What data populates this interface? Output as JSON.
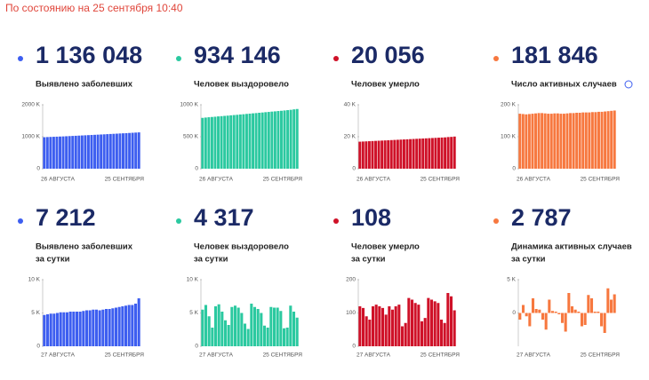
{
  "header": "По состоянию на 25 сентября 10:40",
  "chart_data": [
    {
      "type": "bar",
      "title": "1 136 048",
      "subtitle": [
        "Выявлено заболевших"
      ],
      "color": "#3d5ef0",
      "categories": [
        "26 АВГУСТА",
        null,
        null,
        null,
        null,
        null,
        null,
        null,
        null,
        null,
        null,
        null,
        null,
        null,
        null,
        null,
        null,
        null,
        null,
        null,
        null,
        null,
        null,
        null,
        null,
        null,
        null,
        null,
        null,
        null,
        "25 СЕНТЯБРЯ"
      ],
      "values": [
        985,
        990,
        994,
        998,
        1002,
        1006,
        1010,
        1015,
        1020,
        1025,
        1030,
        1035,
        1040,
        1045,
        1050,
        1055,
        1060,
        1065,
        1070,
        1075,
        1081,
        1086,
        1091,
        1096,
        1102,
        1107,
        1112,
        1118,
        1124,
        1130,
        1136
      ],
      "ylim": [
        0,
        2000
      ],
      "yticks": [
        0,
        {
          "value": 1000,
          "label": "1000 K"
        },
        {
          "value": 2000,
          "label": "2000 K"
        }
      ]
    },
    {
      "type": "bar",
      "title": "934 146",
      "subtitle": [
        "Человек выздоровело"
      ],
      "color": "#2bc9a0",
      "categories": [
        "26 АВГУСТА",
        null,
        null,
        null,
        null,
        null,
        null,
        null,
        null,
        null,
        null,
        null,
        null,
        null,
        null,
        null,
        null,
        null,
        null,
        null,
        null,
        null,
        null,
        null,
        null,
        null,
        null,
        null,
        null,
        null,
        "25 СЕНТЯБРЯ"
      ],
      "values": [
        795,
        800,
        805,
        809,
        813,
        818,
        822,
        826,
        830,
        835,
        839,
        843,
        848,
        852,
        857,
        861,
        866,
        870,
        875,
        879,
        884,
        888,
        893,
        897,
        902,
        906,
        911,
        916,
        921,
        928,
        934
      ],
      "ylim": [
        0,
        1000
      ],
      "yticks": [
        0,
        {
          "value": 500,
          "label": "500 K"
        },
        {
          "value": 1000,
          "label": "1000 K"
        }
      ]
    },
    {
      "type": "bar",
      "title": "20 056",
      "subtitle": [
        "Человек умерло"
      ],
      "color": "#cf1128",
      "categories": [
        "26 АВГУСТА",
        null,
        null,
        null,
        null,
        null,
        null,
        null,
        null,
        null,
        null,
        null,
        null,
        null,
        null,
        null,
        null,
        null,
        null,
        null,
        null,
        null,
        null,
        null,
        null,
        null,
        null,
        null,
        null,
        null,
        "25 СЕНТЯБРЯ"
      ],
      "values": [
        16.9,
        17.0,
        17.1,
        17.2,
        17.3,
        17.4,
        17.5,
        17.6,
        17.7,
        17.8,
        17.9,
        18.0,
        18.1,
        18.2,
        18.3,
        18.4,
        18.5,
        18.6,
        18.7,
        18.8,
        18.9,
        19.0,
        19.1,
        19.2,
        19.3,
        19.4,
        19.5,
        19.6,
        19.8,
        19.9,
        20.1
      ],
      "ylim": [
        0,
        40
      ],
      "yticks": [
        0,
        {
          "value": 20,
          "label": "20 K"
        },
        {
          "value": 40,
          "label": "40 K"
        }
      ]
    },
    {
      "type": "bar",
      "title": "181 846",
      "subtitle": [
        "Число активных случаев"
      ],
      "color": "#f7783f",
      "categories": [
        "26 АВГУСТА",
        null,
        null,
        null,
        null,
        null,
        null,
        null,
        null,
        null,
        null,
        null,
        null,
        null,
        null,
        null,
        null,
        null,
        null,
        null,
        null,
        null,
        null,
        null,
        null,
        null,
        null,
        null,
        null,
        null,
        "25 СЕНТЯБРЯ"
      ],
      "values": [
        172,
        171,
        170,
        171,
        172,
        173,
        174,
        174,
        173,
        172,
        172,
        173,
        173,
        172,
        172,
        173,
        174,
        174,
        175,
        175,
        176,
        176,
        176,
        177,
        177,
        178,
        178,
        179,
        180,
        181,
        182
      ],
      "ylim": [
        0,
        200
      ],
      "yticks": [
        0,
        {
          "value": 100,
          "label": "100 K"
        },
        {
          "value": 200,
          "label": "200 K"
        }
      ]
    },
    {
      "type": "bar",
      "title": "7 212",
      "subtitle": [
        "Выявлено заболевших",
        "за сутки"
      ],
      "color": "#3d5ef0",
      "categories": [
        "27 АВГУСТА",
        null,
        null,
        null,
        null,
        null,
        null,
        null,
        null,
        null,
        null,
        null,
        null,
        null,
        null,
        null,
        null,
        null,
        null,
        null,
        null,
        null,
        null,
        null,
        null,
        null,
        null,
        null,
        null,
        "25 СЕНТЯБРЯ"
      ],
      "values": [
        4.7,
        4.8,
        4.9,
        4.9,
        5.0,
        5.1,
        5.1,
        5.1,
        5.2,
        5.2,
        5.2,
        5.2,
        5.3,
        5.4,
        5.4,
        5.5,
        5.5,
        5.4,
        5.5,
        5.6,
        5.6,
        5.7,
        5.8,
        5.9,
        6.0,
        6.1,
        6.2,
        6.2,
        6.4,
        7.2
      ],
      "ylim": [
        0,
        10
      ],
      "yticks": [
        0,
        {
          "value": 5,
          "label": "5 K"
        },
        {
          "value": 10,
          "label": "10 K"
        }
      ]
    },
    {
      "type": "bar",
      "title": "4 317",
      "subtitle": [
        "Человек выздоровело",
        "за сутки"
      ],
      "color": "#2bc9a0",
      "categories": [
        "27 АВГУСТА",
        null,
        null,
        null,
        null,
        null,
        null,
        null,
        null,
        null,
        null,
        null,
        null,
        null,
        null,
        null,
        null,
        null,
        null,
        null,
        null,
        null,
        null,
        null,
        null,
        null,
        null,
        null,
        null,
        "25 СЕНТЯБРЯ"
      ],
      "values": [
        5.5,
        6.2,
        4.5,
        2.8,
        6.0,
        6.3,
        5.2,
        3.9,
        3.2,
        5.9,
        6.1,
        5.8,
        5.0,
        3.4,
        2.6,
        6.4,
        5.9,
        5.6,
        5.0,
        3.1,
        2.8,
        5.9,
        5.8,
        5.8,
        5.3,
        2.7,
        2.8,
        6.1,
        5.2,
        4.3
      ],
      "ylim": [
        0,
        10
      ],
      "yticks": [
        0,
        {
          "value": 5,
          "label": "5 K"
        },
        {
          "value": 10,
          "label": "10 K"
        }
      ]
    },
    {
      "type": "bar",
      "title": "108",
      "subtitle": [
        "Человек умерло",
        "за сутки"
      ],
      "color": "#cf1128",
      "categories": [
        "27 АВГУСТА",
        null,
        null,
        null,
        null,
        null,
        null,
        null,
        null,
        null,
        null,
        null,
        null,
        null,
        null,
        null,
        null,
        null,
        null,
        null,
        null,
        null,
        null,
        null,
        null,
        null,
        null,
        null,
        null,
        "25 СЕНТЯБРЯ"
      ],
      "values": [
        120,
        115,
        90,
        80,
        120,
        125,
        120,
        115,
        95,
        120,
        110,
        120,
        125,
        60,
        70,
        145,
        140,
        130,
        125,
        75,
        85,
        145,
        140,
        135,
        130,
        80,
        70,
        160,
        150,
        108
      ],
      "ylim": [
        0,
        200
      ],
      "yticks": [
        0,
        100,
        200
      ]
    },
    {
      "type": "bar",
      "title": "2 787",
      "subtitle": [
        "Динамика активных случаев",
        "за сутки"
      ],
      "color": "#f7783f",
      "categories": [
        "27 АВГУСТА",
        null,
        null,
        null,
        null,
        null,
        null,
        null,
        null,
        null,
        null,
        null,
        null,
        null,
        null,
        null,
        null,
        null,
        null,
        null,
        null,
        null,
        null,
        null,
        null,
        null,
        null,
        null,
        null,
        "25 СЕНТЯБРЯ"
      ],
      "values": [
        -1.0,
        1.2,
        -0.5,
        -2.0,
        2.2,
        0.6,
        0.5,
        -1.0,
        -2.5,
        2.0,
        0.3,
        0.2,
        -0.2,
        -1.5,
        -2.8,
        3.0,
        1.0,
        0.5,
        0.2,
        -2.0,
        -1.8,
        2.7,
        2.2,
        0.2,
        0.2,
        -2.0,
        -3.0,
        3.7,
        2.0,
        2.8
      ],
      "ylim": [
        -5,
        5
      ],
      "yticks": [
        0,
        {
          "value": 5,
          "label": "5 K"
        }
      ]
    }
  ]
}
